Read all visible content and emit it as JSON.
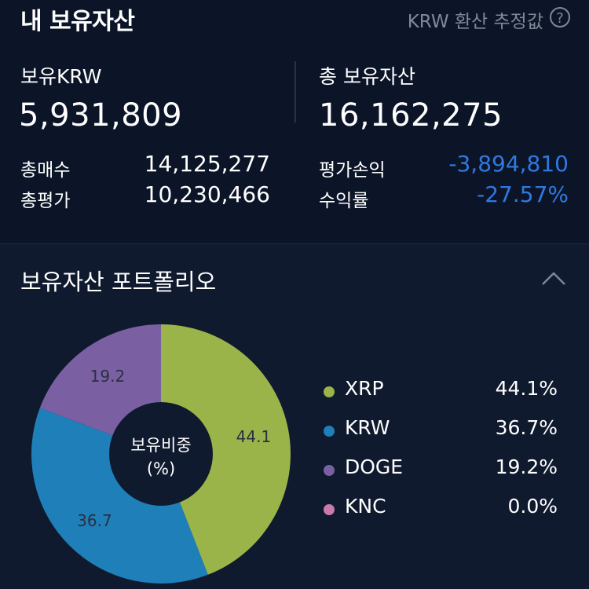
{
  "header": {
    "title": "내 보유자산",
    "krw_note": "KRW 환산 추정값",
    "help_glyph": "?"
  },
  "summary": {
    "krw_label": "보유KRW",
    "krw_value": "5,931,809",
    "total_label": "총 보유자산",
    "total_value": "16,162,275",
    "buy_label": "총매수",
    "buy_value": "14,125,277",
    "eval_label": "총평가",
    "eval_value": "10,230,466",
    "pl_label": "평가손익",
    "pl_value": "-3,894,810",
    "rate_label": "수익률",
    "rate_value": "-27.57%",
    "negative_color": "#2f78e0"
  },
  "portfolio": {
    "title": "보유자산 포트폴리오",
    "center_line1": "보유비중",
    "center_line2": "(%)",
    "items": [
      {
        "name": "XRP",
        "pct_text": "44.1%",
        "label": "44.1",
        "value": 44.1,
        "color": "#9bb44a"
      },
      {
        "name": "KRW",
        "pct_text": "36.7%",
        "label": "36.7",
        "value": 36.7,
        "color": "#1f7fb8"
      },
      {
        "name": "DOGE",
        "pct_text": "19.2%",
        "label": "19.2",
        "value": 19.2,
        "color": "#7a5fa3"
      },
      {
        "name": "KNC",
        "pct_text": "0.0%",
        "label": "",
        "value": 0.0,
        "color": "#c87aae"
      }
    ]
  }
}
